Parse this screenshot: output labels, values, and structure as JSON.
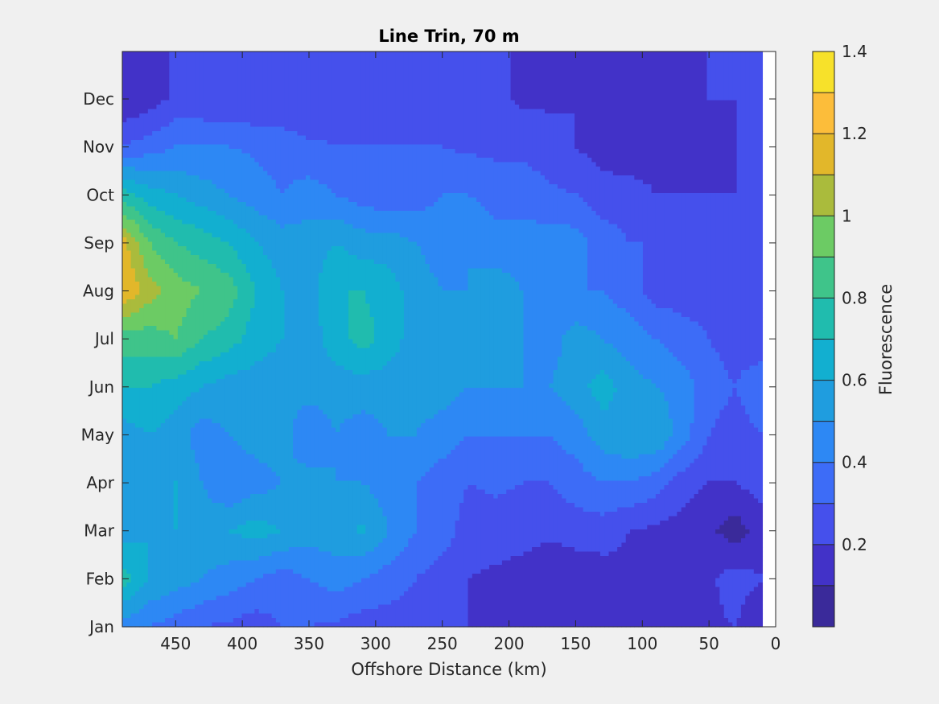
{
  "chart_data": {
    "type": "heatmap",
    "title": "Line Trin, 70 m",
    "xlabel": "Offshore Distance (km)",
    "ylabel": "",
    "x_reversed": true,
    "xlim": [
      0,
      490
    ],
    "x_ticks": [
      450,
      400,
      350,
      300,
      250,
      200,
      150,
      100,
      50,
      0
    ],
    "y_ticks": [
      "Jan",
      "Feb",
      "Mar",
      "Apr",
      "May",
      "Jun",
      "Jul",
      "Aug",
      "Sep",
      "Oct",
      "Nov",
      "Dec"
    ],
    "x_values": [
      490,
      470,
      450,
      430,
      410,
      390,
      370,
      350,
      330,
      310,
      290,
      270,
      250,
      230,
      210,
      190,
      170,
      150,
      130,
      110,
      90,
      70,
      50,
      30,
      10
    ],
    "data_xlim": [
      10,
      490
    ],
    "months_values": [
      "Jan",
      "Feb",
      "Mar",
      "Apr",
      "May",
      "Jun",
      "Jul",
      "Aug",
      "Sep",
      "Oct",
      "Nov",
      "Dec"
    ],
    "z": [
      [
        0.45,
        0.4,
        0.35,
        0.3,
        0.28,
        0.25,
        0.3,
        0.3,
        0.28,
        0.25,
        0.25,
        0.25,
        0.22,
        0.2,
        0.15,
        0.12,
        0.1,
        0.1,
        0.12,
        0.12,
        0.12,
        0.15,
        0.18,
        0.2,
        0.1
      ],
      [
        0.75,
        0.6,
        0.55,
        0.5,
        0.45,
        0.4,
        0.35,
        0.4,
        0.45,
        0.4,
        0.35,
        0.3,
        0.25,
        0.2,
        0.18,
        0.15,
        0.12,
        0.12,
        0.15,
        0.18,
        0.15,
        0.15,
        0.18,
        0.25,
        0.2
      ],
      [
        0.55,
        0.6,
        0.6,
        0.55,
        0.6,
        0.65,
        0.6,
        0.55,
        0.55,
        0.62,
        0.5,
        0.4,
        0.35,
        0.25,
        0.25,
        0.25,
        0.22,
        0.25,
        0.25,
        0.2,
        0.18,
        0.15,
        0.12,
        0.05,
        0.15
      ],
      [
        0.5,
        0.55,
        0.6,
        0.5,
        0.4,
        0.45,
        0.5,
        0.55,
        0.5,
        0.5,
        0.45,
        0.4,
        0.35,
        0.3,
        0.32,
        0.3,
        0.3,
        0.35,
        0.4,
        0.4,
        0.35,
        0.25,
        0.2,
        0.2,
        0.25
      ],
      [
        0.55,
        0.6,
        0.55,
        0.45,
        0.5,
        0.55,
        0.55,
        0.4,
        0.5,
        0.45,
        0.5,
        0.5,
        0.45,
        0.4,
        0.4,
        0.4,
        0.4,
        0.45,
        0.55,
        0.6,
        0.6,
        0.45,
        0.3,
        0.25,
        0.3
      ],
      [
        0.7,
        0.7,
        0.65,
        0.6,
        0.55,
        0.55,
        0.55,
        0.55,
        0.55,
        0.55,
        0.55,
        0.55,
        0.55,
        0.5,
        0.5,
        0.5,
        0.5,
        0.55,
        0.65,
        0.55,
        0.5,
        0.45,
        0.35,
        0.3,
        0.4
      ],
      [
        0.85,
        0.85,
        0.9,
        0.8,
        0.75,
        0.65,
        0.6,
        0.55,
        0.65,
        0.75,
        0.65,
        0.55,
        0.5,
        0.55,
        0.6,
        0.5,
        0.45,
        0.55,
        0.5,
        0.45,
        0.4,
        0.35,
        0.3,
        0.25,
        0.2
      ],
      [
        1.2,
        1.05,
        0.95,
        0.9,
        0.85,
        0.7,
        0.6,
        0.55,
        0.7,
        0.7,
        0.65,
        0.55,
        0.5,
        0.5,
        0.55,
        0.5,
        0.45,
        0.4,
        0.4,
        0.35,
        0.25,
        0.25,
        0.25,
        0.25,
        0.25
      ],
      [
        1.15,
        0.9,
        0.8,
        0.75,
        0.7,
        0.6,
        0.55,
        0.55,
        0.6,
        0.55,
        0.55,
        0.5,
        0.45,
        0.5,
        0.45,
        0.45,
        0.45,
        0.45,
        0.35,
        0.3,
        0.3,
        0.25,
        0.25,
        0.25,
        0.25
      ],
      [
        0.75,
        0.65,
        0.6,
        0.55,
        0.5,
        0.45,
        0.4,
        0.45,
        0.4,
        0.35,
        0.32,
        0.35,
        0.4,
        0.4,
        0.35,
        0.35,
        0.32,
        0.3,
        0.25,
        0.25,
        0.2,
        0.2,
        0.2,
        0.2,
        0.2
      ],
      [
        0.3,
        0.35,
        0.4,
        0.4,
        0.4,
        0.38,
        0.35,
        0.32,
        0.3,
        0.3,
        0.3,
        0.3,
        0.3,
        0.28,
        0.28,
        0.28,
        0.25,
        0.2,
        0.15,
        0.12,
        0.15,
        0.15,
        0.18,
        0.2,
        0.2
      ],
      [
        0.1,
        0.15,
        0.22,
        0.22,
        0.2,
        0.2,
        0.22,
        0.2,
        0.25,
        0.25,
        0.25,
        0.25,
        0.22,
        0.22,
        0.22,
        0.18,
        0.18,
        0.2,
        0.12,
        0.12,
        0.15,
        0.15,
        0.2,
        0.2,
        0.2
      ]
    ],
    "colorbar": {
      "label": "Fluorescence",
      "ticks": [
        "0.2",
        "0.4",
        "0.6",
        "0.8",
        "1",
        "1.2",
        "1.4"
      ],
      "tick_values": [
        0.2,
        0.4,
        0.6,
        0.8,
        1.0,
        1.2,
        1.4
      ],
      "min": 0,
      "max": 1.4,
      "levels": [
        0.1,
        0.2,
        0.3,
        0.4,
        0.5,
        0.6,
        0.7,
        0.8,
        0.9,
        1.0,
        1.1,
        1.2,
        1.3
      ],
      "colors": [
        "#3a2a9a",
        "#4232c8",
        "#4550ec",
        "#3d6cf7",
        "#2d88f4",
        "#1f9ddf",
        "#12afd0",
        "#20bcae",
        "#3fc48a",
        "#6ccb64",
        "#aabb3c",
        "#e2b72a",
        "#fcbd3a",
        "#f7e12a"
      ]
    }
  }
}
